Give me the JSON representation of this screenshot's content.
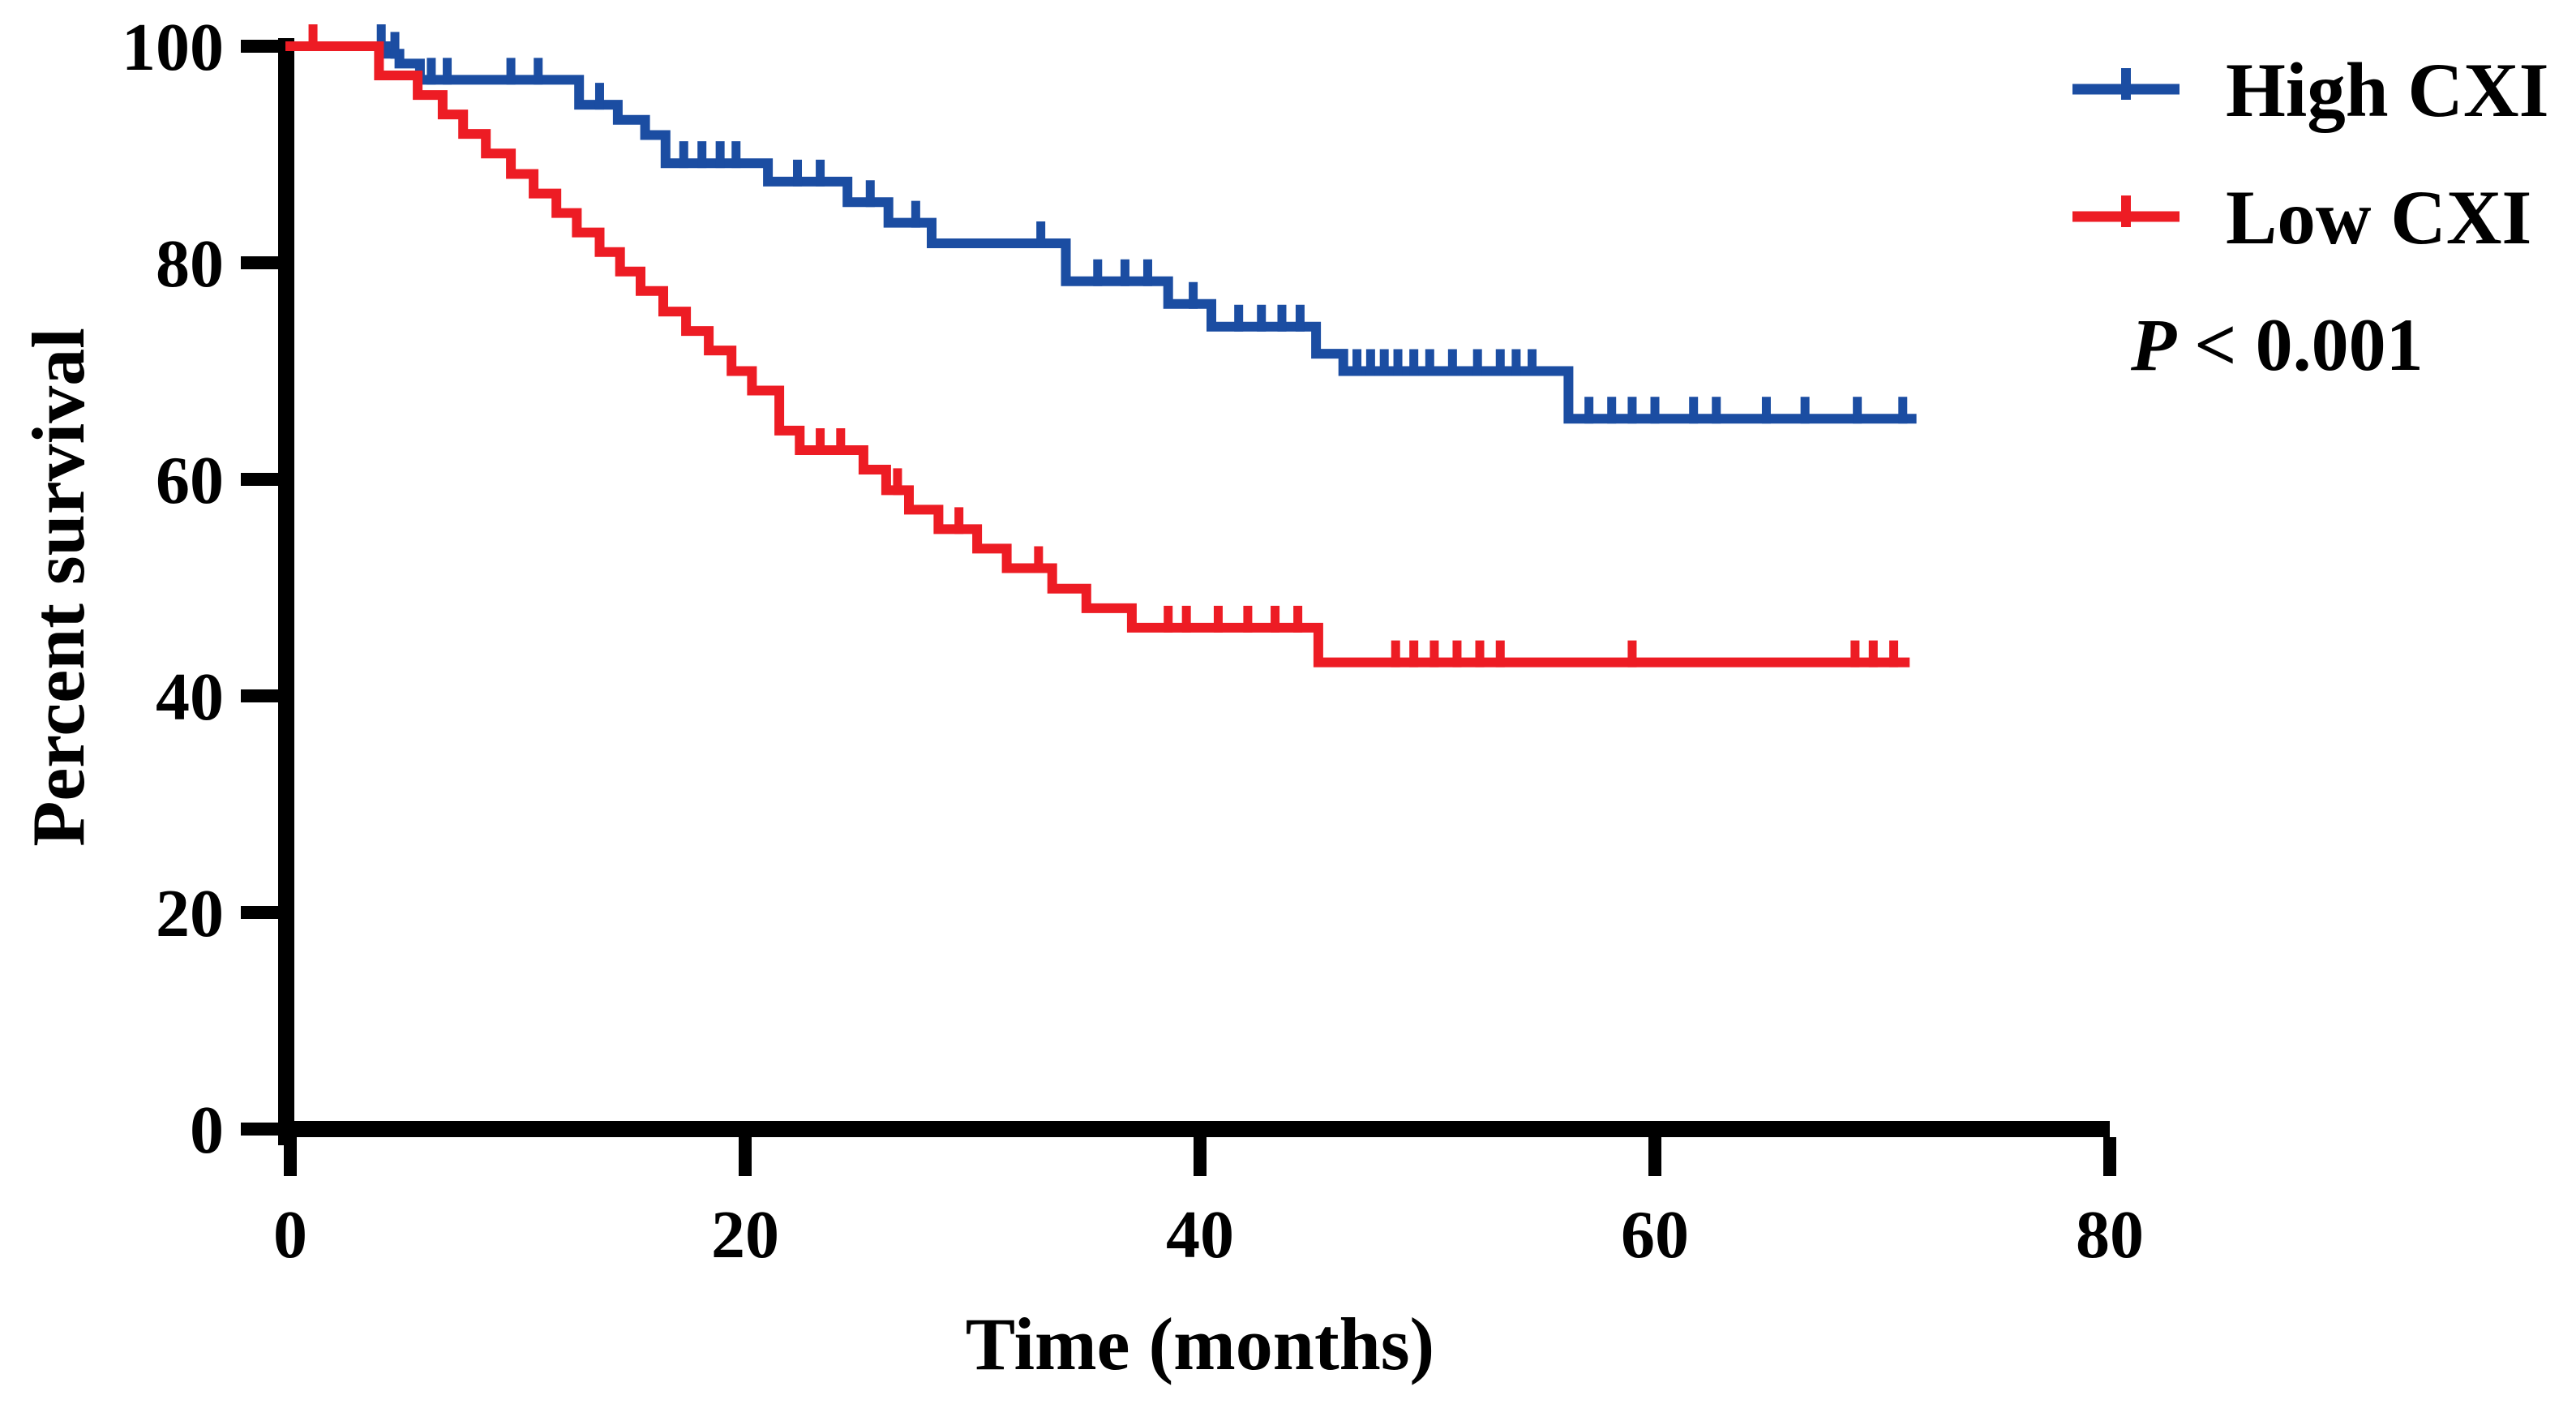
{
  "figure": {
    "background": "#ffffff",
    "axis_color": "#000000"
  },
  "chart_data": {
    "type": "line",
    "subtype": "kaplan-meier-step",
    "title": "",
    "xlabel": "Time (months)",
    "ylabel": "Percent survival",
    "xlim": [
      0,
      80
    ],
    "ylim": [
      0,
      100
    ],
    "x_ticks": [
      0,
      20,
      40,
      60,
      80
    ],
    "y_ticks": [
      0,
      20,
      40,
      60,
      80,
      100
    ],
    "grid": false,
    "legend_position": "top-right",
    "annotation": {
      "p_italic": "P",
      "p_rest": "< 0.001"
    },
    "series": [
      {
        "name": "High CXI",
        "color": "#1b4da2",
        "end_time": 71.5,
        "steps": [
          [
            0,
            100
          ],
          [
            4.2,
            99.3
          ],
          [
            4.8,
            98.4
          ],
          [
            5.7,
            96.9
          ],
          [
            12.7,
            94.6
          ],
          [
            14.4,
            93.2
          ],
          [
            15.6,
            91.8
          ],
          [
            16.5,
            89.2
          ],
          [
            21.0,
            87.5
          ],
          [
            24.5,
            85.6
          ],
          [
            26.3,
            83.7
          ],
          [
            28.2,
            81.8
          ],
          [
            34.1,
            78.3
          ],
          [
            38.6,
            76.2
          ],
          [
            40.5,
            74.1
          ],
          [
            45.1,
            71.6
          ],
          [
            46.3,
            70.0
          ],
          [
            56.2,
            65.6
          ]
        ],
        "censors": [
          [
            4.0,
            100
          ],
          [
            4.6,
            99.3
          ],
          [
            6.2,
            96.9
          ],
          [
            6.9,
            96.9
          ],
          [
            9.7,
            96.9
          ],
          [
            10.9,
            96.9
          ],
          [
            13.6,
            94.6
          ],
          [
            17.3,
            89.2
          ],
          [
            18.1,
            89.2
          ],
          [
            18.9,
            89.2
          ],
          [
            19.6,
            89.2
          ],
          [
            22.3,
            87.5
          ],
          [
            23.3,
            87.5
          ],
          [
            25.5,
            85.6
          ],
          [
            27.5,
            83.7
          ],
          [
            33.0,
            81.8
          ],
          [
            35.5,
            78.3
          ],
          [
            36.7,
            78.3
          ],
          [
            37.7,
            78.3
          ],
          [
            39.7,
            76.2
          ],
          [
            41.7,
            74.1
          ],
          [
            42.7,
            74.1
          ],
          [
            43.6,
            74.1
          ],
          [
            44.4,
            74.1
          ],
          [
            46.9,
            70.0
          ],
          [
            47.5,
            70.0
          ],
          [
            48.1,
            70.0
          ],
          [
            48.7,
            70.0
          ],
          [
            49.4,
            70.0
          ],
          [
            50.1,
            70.0
          ],
          [
            51.1,
            70.0
          ],
          [
            52.2,
            70.0
          ],
          [
            53.2,
            70.0
          ],
          [
            53.9,
            70.0
          ],
          [
            54.6,
            70.0
          ],
          [
            57.1,
            65.6
          ],
          [
            58.1,
            65.6
          ],
          [
            59.0,
            65.6
          ],
          [
            60.0,
            65.6
          ],
          [
            61.7,
            65.6
          ],
          [
            62.7,
            65.6
          ],
          [
            64.9,
            65.6
          ],
          [
            66.6,
            65.6
          ],
          [
            68.9,
            65.6
          ],
          [
            70.9,
            65.6
          ]
        ]
      },
      {
        "name": "Low CXI",
        "color": "#ed1c24",
        "end_time": 71.2,
        "steps": [
          [
            0,
            100
          ],
          [
            3.9,
            97.3
          ],
          [
            5.6,
            95.5
          ],
          [
            6.7,
            93.7
          ],
          [
            7.6,
            91.9
          ],
          [
            8.6,
            90.1
          ],
          [
            9.7,
            88.2
          ],
          [
            10.7,
            86.4
          ],
          [
            11.7,
            84.6
          ],
          [
            12.6,
            82.8
          ],
          [
            13.6,
            81.0
          ],
          [
            14.5,
            79.2
          ],
          [
            15.4,
            77.4
          ],
          [
            16.4,
            75.5
          ],
          [
            17.4,
            73.7
          ],
          [
            18.4,
            71.9
          ],
          [
            19.4,
            70.0
          ],
          [
            20.3,
            68.2
          ],
          [
            21.5,
            64.5
          ],
          [
            22.4,
            62.7
          ],
          [
            25.2,
            60.9
          ],
          [
            26.2,
            59.0
          ],
          [
            27.2,
            57.2
          ],
          [
            28.5,
            55.4
          ],
          [
            30.2,
            53.6
          ],
          [
            31.5,
            51.8
          ],
          [
            33.5,
            49.9
          ],
          [
            35.0,
            48.1
          ],
          [
            37.0,
            46.3
          ],
          [
            45.2,
            43.1
          ]
        ],
        "censors": [
          [
            1.0,
            100
          ],
          [
            23.3,
            62.7
          ],
          [
            24.2,
            62.7
          ],
          [
            26.7,
            59.0
          ],
          [
            29.4,
            55.4
          ],
          [
            32.9,
            51.8
          ],
          [
            38.6,
            46.3
          ],
          [
            39.4,
            46.3
          ],
          [
            40.8,
            46.3
          ],
          [
            42.1,
            46.3
          ],
          [
            43.3,
            46.3
          ],
          [
            44.3,
            46.3
          ],
          [
            48.6,
            43.1
          ],
          [
            49.4,
            43.1
          ],
          [
            50.3,
            43.1
          ],
          [
            51.3,
            43.1
          ],
          [
            52.3,
            43.1
          ],
          [
            53.2,
            43.1
          ],
          [
            59.0,
            43.1
          ],
          [
            68.8,
            43.1
          ],
          [
            69.6,
            43.1
          ],
          [
            70.5,
            43.1
          ]
        ]
      }
    ]
  }
}
